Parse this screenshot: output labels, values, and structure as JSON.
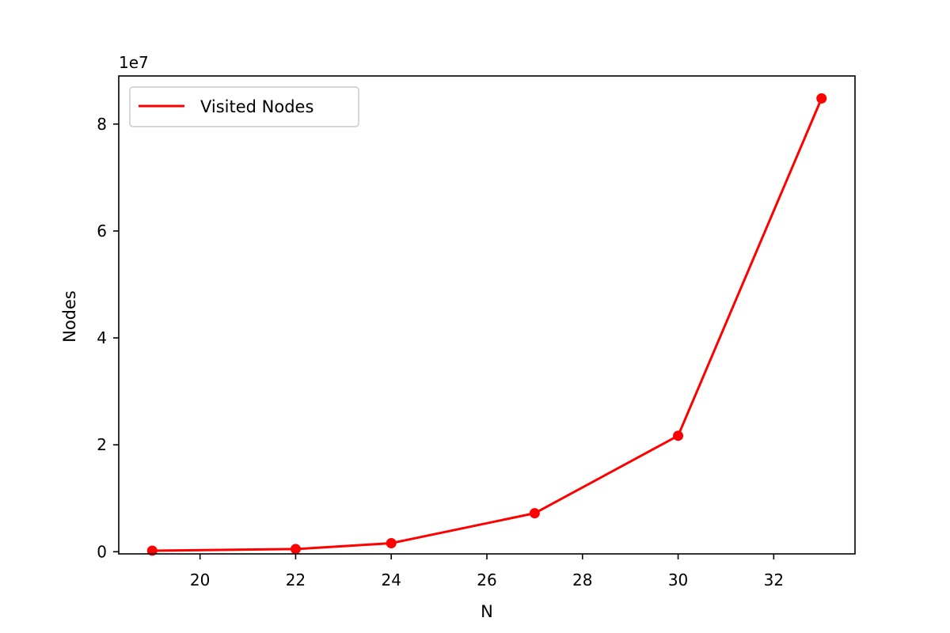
{
  "chart_data": {
    "type": "line",
    "title": "",
    "xlabel": "N",
    "ylabel": "Nodes",
    "y_scale_label": "1e7",
    "y_multiplier": 10000000,
    "xlim": [
      18.3,
      33.7
    ],
    "ylim": [
      -400000,
      89000000
    ],
    "x_ticks": [
      20,
      22,
      24,
      26,
      28,
      30,
      32
    ],
    "y_ticks": [
      0,
      20000000,
      40000000,
      60000000,
      80000000
    ],
    "y_tick_labels": [
      "0",
      "2",
      "4",
      "6",
      "8"
    ],
    "legend_position": "top-left",
    "grid": false,
    "series": [
      {
        "name": "Visited Nodes",
        "color": "#ff0000",
        "x": [
          19,
          22,
          24,
          27,
          30,
          33
        ],
        "y": [
          200000,
          500000,
          1600000,
          7200000,
          21700000,
          84800000
        ]
      }
    ]
  }
}
